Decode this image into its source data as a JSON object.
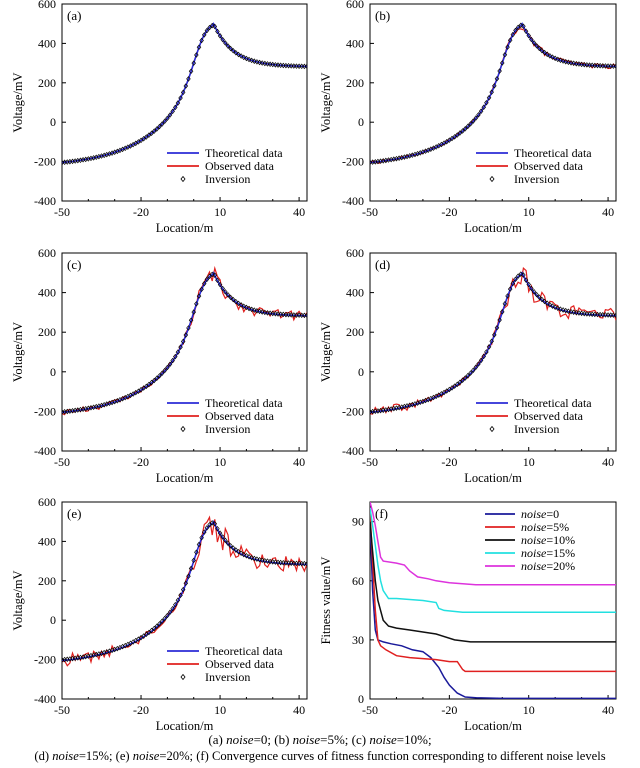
{
  "chart_data": [
    {
      "panel_label": "(a)",
      "type": "line",
      "noise": 0,
      "xlabel": "Location/m",
      "ylabel": "Voltage/mV",
      "xlim": [
        -50,
        43
      ],
      "ylim": [
        -400,
        600
      ],
      "xticks": [
        -50,
        -20,
        10,
        40
      ],
      "yticks": [
        -400,
        -200,
        0,
        200,
        400,
        600
      ],
      "legend_position": "bottom-right",
      "series": [
        {
          "name": "Theoretical data",
          "color": "#2b2bd6"
        },
        {
          "name": "Observed data",
          "color": "#e0201e"
        },
        {
          "name": "Inversion",
          "marker": "diamond",
          "color": "#000000"
        }
      ]
    },
    {
      "panel_label": "(b)",
      "type": "line",
      "noise": 0.05,
      "xlabel": "Location/m",
      "ylabel": "Voltage/mV",
      "xlim": [
        -50,
        43
      ],
      "ylim": [
        -400,
        600
      ],
      "xticks": [
        -50,
        -20,
        10,
        40
      ],
      "yticks": [
        -400,
        -200,
        0,
        200,
        400,
        600
      ],
      "legend_position": "bottom-right",
      "series": [
        {
          "name": "Theoretical data",
          "color": "#2b2bd6"
        },
        {
          "name": "Observed data",
          "color": "#e0201e"
        },
        {
          "name": "Inversion",
          "marker": "diamond",
          "color": "#000000"
        }
      ]
    },
    {
      "panel_label": "(c)",
      "type": "line",
      "noise": 0.1,
      "xlabel": "Location/m",
      "ylabel": "Voltage/mV",
      "xlim": [
        -50,
        43
      ],
      "ylim": [
        -400,
        600
      ],
      "xticks": [
        -50,
        -20,
        10,
        40
      ],
      "yticks": [
        -400,
        -200,
        0,
        200,
        400,
        600
      ],
      "legend_position": "bottom-right",
      "series": [
        {
          "name": "Theoretical data",
          "color": "#2b2bd6"
        },
        {
          "name": "Observed data",
          "color": "#e0201e"
        },
        {
          "name": "Inversion",
          "marker": "diamond",
          "color": "#000000"
        }
      ]
    },
    {
      "panel_label": "(d)",
      "type": "line",
      "noise": 0.15,
      "xlabel": "Location/m",
      "ylabel": "Voltage/mV",
      "xlim": [
        -50,
        43
      ],
      "ylim": [
        -400,
        600
      ],
      "xticks": [
        -50,
        -20,
        10,
        40
      ],
      "yticks": [
        -400,
        -200,
        0,
        200,
        400,
        600
      ],
      "legend_position": "bottom-right",
      "series": [
        {
          "name": "Theoretical data",
          "color": "#2b2bd6"
        },
        {
          "name": "Observed data",
          "color": "#e0201e"
        },
        {
          "name": "Inversion",
          "marker": "diamond",
          "color": "#000000"
        }
      ]
    },
    {
      "panel_label": "(e)",
      "type": "line",
      "noise": 0.2,
      "xlabel": "Location/m",
      "ylabel": "Voltage/mV",
      "xlim": [
        -50,
        43
      ],
      "ylim": [
        -400,
        600
      ],
      "xticks": [
        -50,
        -20,
        10,
        40
      ],
      "yticks": [
        -400,
        -200,
        0,
        200,
        400,
        600
      ],
      "legend_position": "bottom-right",
      "series": [
        {
          "name": "Theoretical data",
          "color": "#2b2bd6"
        },
        {
          "name": "Observed data",
          "color": "#e0201e"
        },
        {
          "name": "Inversion",
          "marker": "diamond",
          "color": "#000000"
        }
      ]
    },
    {
      "panel_label": "(f)",
      "type": "line",
      "xlabel": "Location/m",
      "ylabel": "Fitness value/mV",
      "xlim": [
        -50,
        43
      ],
      "ylim": [
        0,
        100
      ],
      "xticks": [
        -50,
        -20,
        10,
        40
      ],
      "yticks": [
        0,
        30,
        60,
        90
      ],
      "legend_position": "top-right",
      "series": [
        {
          "name_prefix": "noise",
          "name_suffix": "=0",
          "color": "#1a1a9a",
          "points": [
            [
              -50,
              92
            ],
            [
              -49,
              55
            ],
            [
              -48,
              35
            ],
            [
              -47,
              30
            ],
            [
              -45,
              29
            ],
            [
              -42,
              28
            ],
            [
              -38,
              27
            ],
            [
              -34,
              25
            ],
            [
              -30,
              24
            ],
            [
              -27,
              21
            ],
            [
              -24,
              16
            ],
            [
              -22,
              11
            ],
            [
              -20,
              7
            ],
            [
              -17,
              3
            ],
            [
              -14,
              1
            ],
            [
              -10,
              0.6
            ],
            [
              0,
              0.3
            ],
            [
              43,
              0.3
            ]
          ]
        },
        {
          "name_prefix": "noise",
          "name_suffix": "=5%",
          "color": "#e02020",
          "points": [
            [
              -50,
              95
            ],
            [
              -49,
              70
            ],
            [
              -48,
              45
            ],
            [
              -47,
              30
            ],
            [
              -46,
              27
            ],
            [
              -44,
              25
            ],
            [
              -40,
              22
            ],
            [
              -35,
              21
            ],
            [
              -25,
              20
            ],
            [
              -20,
              19
            ],
            [
              -17,
              19
            ],
            [
              -15,
              15
            ],
            [
              -14,
              14
            ],
            [
              0,
              14
            ],
            [
              43,
              14
            ]
          ]
        },
        {
          "name_prefix": "noise",
          "name_suffix": "=10%",
          "color": "#111111",
          "points": [
            [
              -50,
              90
            ],
            [
              -49,
              75
            ],
            [
              -48,
              60
            ],
            [
              -47,
              50
            ],
            [
              -45,
              40
            ],
            [
              -43,
              37
            ],
            [
              -40,
              36
            ],
            [
              -35,
              35
            ],
            [
              -30,
              34
            ],
            [
              -25,
              33
            ],
            [
              -18,
              30
            ],
            [
              -12,
              29
            ],
            [
              0,
              29
            ],
            [
              43,
              29
            ]
          ]
        },
        {
          "name_prefix": "noise",
          "name_suffix": "=15%",
          "color": "#22e0e0",
          "points": [
            [
              -50,
              97
            ],
            [
              -49,
              88
            ],
            [
              -48,
              78
            ],
            [
              -47,
              68
            ],
            [
              -46,
              60
            ],
            [
              -45,
              55
            ],
            [
              -43,
              51
            ],
            [
              -40,
              51
            ],
            [
              -30,
              50
            ],
            [
              -25,
              49
            ],
            [
              -24,
              46
            ],
            [
              -22,
              45
            ],
            [
              -15,
              44
            ],
            [
              0,
              44
            ],
            [
              43,
              44
            ]
          ]
        },
        {
          "name_prefix": "noise",
          "name_suffix": "=20%",
          "color": "#dd33dd",
          "points": [
            [
              -50,
              100
            ],
            [
              -49,
              95
            ],
            [
              -48,
              88
            ],
            [
              -47,
              80
            ],
            [
              -46,
              72
            ],
            [
              -45,
              70
            ],
            [
              -40,
              69
            ],
            [
              -37,
              68
            ],
            [
              -35,
              65
            ],
            [
              -32,
              62
            ],
            [
              -28,
              61
            ],
            [
              -25,
              60
            ],
            [
              -20,
              59
            ],
            [
              -10,
              58
            ],
            [
              43,
              58
            ]
          ]
        }
      ]
    }
  ],
  "caption": {
    "line1": [
      {
        "t": "(a) "
      },
      {
        "t": "noise",
        "i": true
      },
      {
        "t": "=0; (b) "
      },
      {
        "t": "noise",
        "i": true
      },
      {
        "t": "=5%; (c) "
      },
      {
        "t": "noise",
        "i": true
      },
      {
        "t": "=10%;"
      }
    ],
    "line2": [
      {
        "t": "(d) "
      },
      {
        "t": "noise",
        "i": true
      },
      {
        "t": "=15%; (e) "
      },
      {
        "t": "noise",
        "i": true
      },
      {
        "t": "=20%; (f) Convergence curves of fitness function corresponding to different noise levels"
      }
    ]
  }
}
